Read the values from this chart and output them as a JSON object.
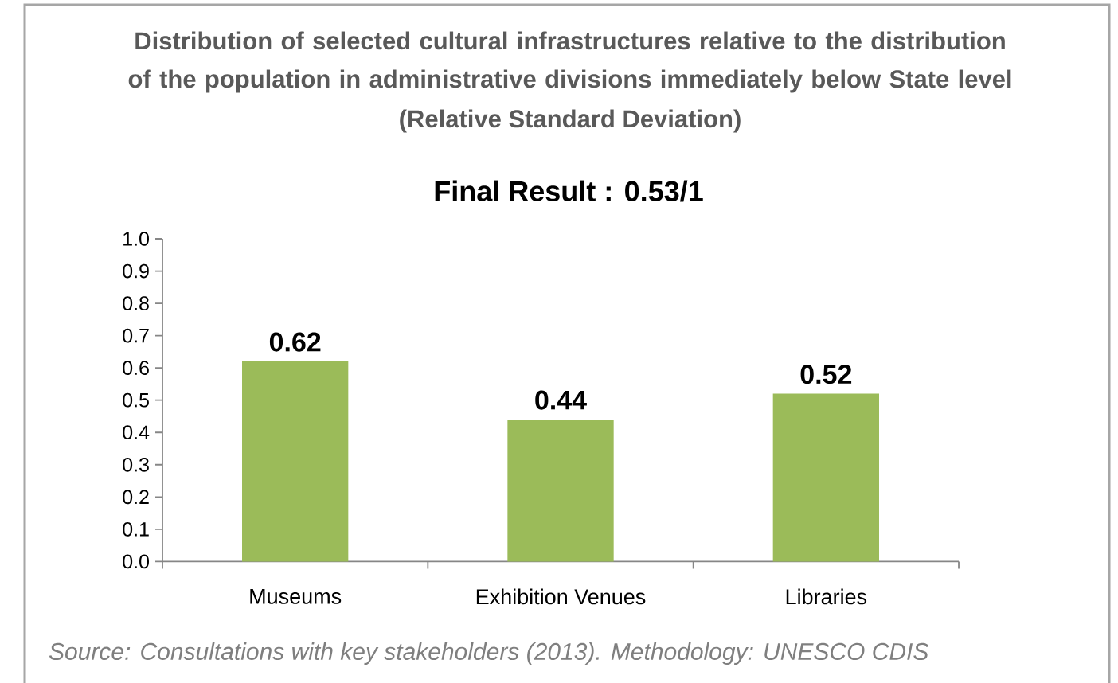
{
  "chart_data": {
    "type": "bar",
    "title": "Distribution of selected cultural infrastructures relative to the distribution of the population in administrative divisions immediately below State level",
    "subtitle": "(Relative Standard Deviation)",
    "annotations": [
      "Final Result : 0.53/1",
      "Source: Consultations with key stakeholders (2013). Methodology: UNESCO CDIS"
    ],
    "categories": [
      "Museums",
      "Exhibition Venues",
      "Libraries"
    ],
    "values": [
      0.62,
      0.44,
      0.52
    ],
    "color": "#9bbb59",
    "ylim": [
      0,
      1
    ],
    "yticks": [
      {
        "value": 0,
        "label": "0.0"
      },
      {
        "value": 0.1,
        "label": "0.1"
      },
      {
        "value": 0.2,
        "label": "0.2"
      },
      {
        "value": 0.3,
        "label": "0.3"
      },
      {
        "value": 0.4,
        "label": "0.4"
      },
      {
        "value": 0.5,
        "label": "0.5"
      },
      {
        "value": 0.6,
        "label": "0.6"
      },
      {
        "value": 0.7,
        "label": "0.7"
      },
      {
        "value": 0.8,
        "label": "0.8"
      },
      {
        "value": 0.9,
        "label": "0.9"
      },
      {
        "value": 1,
        "label": "1.0"
      }
    ],
    "data_labels": true
  }
}
